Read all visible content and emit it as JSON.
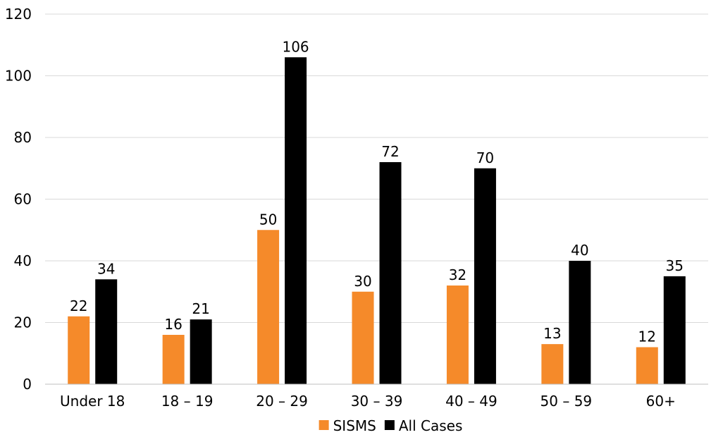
{
  "chart_data": {
    "type": "bar",
    "categories": [
      "Under 18",
      "18 – 19",
      "20 – 29",
      "30 – 39",
      "40 – 49",
      "50 – 59",
      "60+"
    ],
    "series": [
      {
        "name": "SISMS",
        "values": [
          22,
          16,
          50,
          30,
          32,
          13,
          12
        ],
        "color": "#f58a2a"
      },
      {
        "name": "All Cases",
        "values": [
          34,
          21,
          106,
          72,
          70,
          40,
          35
        ],
        "color": "#000000"
      }
    ],
    "ylim": [
      0,
      120
    ],
    "yticks": [
      0,
      20,
      40,
      60,
      80,
      100,
      120
    ],
    "grid": true,
    "legend": "bottom-center",
    "data_labels": true
  }
}
